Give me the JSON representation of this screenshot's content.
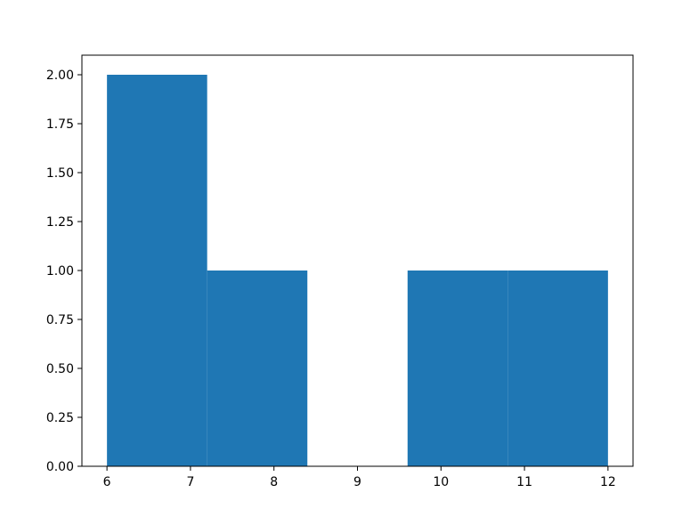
{
  "chart_data": {
    "type": "bar",
    "subtype": "histogram",
    "bin_edges": [
      6.0,
      7.2,
      8.4,
      9.6,
      10.8,
      12.0
    ],
    "values": [
      2,
      1,
      0,
      1,
      1
    ],
    "title": "",
    "xlabel": "",
    "ylabel": "",
    "xlim": [
      5.7,
      12.3
    ],
    "ylim": [
      0,
      2.1
    ],
    "xticks": [
      6,
      7,
      8,
      9,
      10,
      11,
      12
    ],
    "xtick_labels": [
      "6",
      "7",
      "8",
      "9",
      "10",
      "11",
      "12"
    ],
    "yticks": [
      0,
      0.25,
      0.5,
      0.75,
      1.0,
      1.25,
      1.5,
      1.75,
      2.0
    ],
    "ytick_labels": [
      "0.00",
      "0.25",
      "0.50",
      "0.75",
      "1.00",
      "1.25",
      "1.50",
      "1.75",
      "2.00"
    ],
    "grid": false,
    "bar_color": "#1f77b4"
  }
}
